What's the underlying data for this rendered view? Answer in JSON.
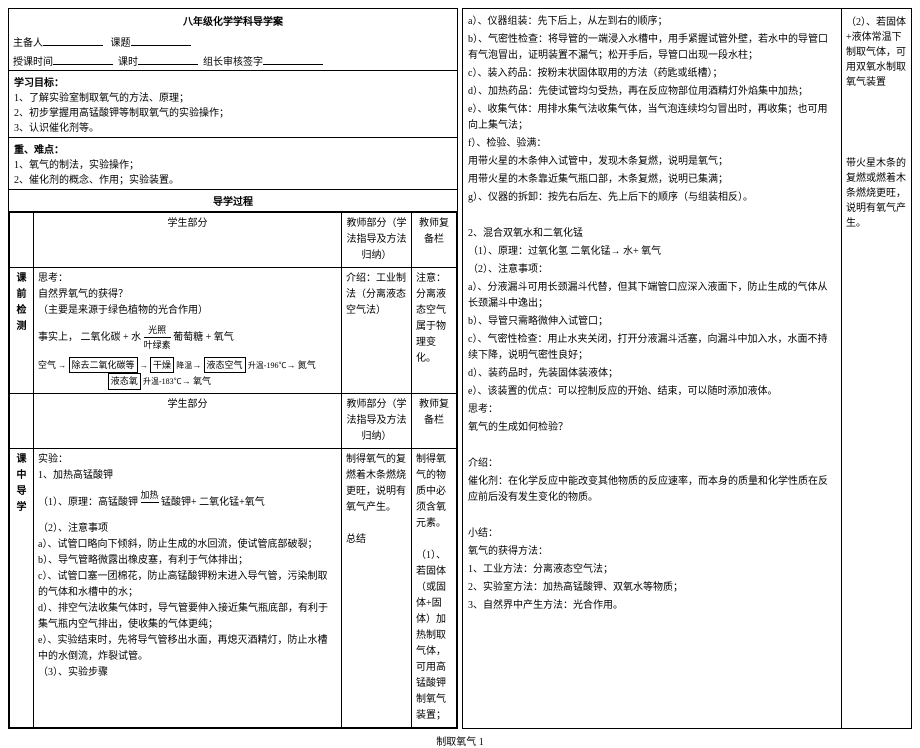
{
  "header": {
    "title": "八年级化学学科导学案",
    "host_label": "主备人",
    "topic_label": "课题",
    "time_label": "授课时间",
    "period_label": "课时",
    "leader_label": "组长审核签字"
  },
  "goals": {
    "header": "学习目标：",
    "items": [
      "1、了解实验室制取氧气的方法、原理；",
      "2、初步掌握用高锰酸钾等制取氧气的实验操作；",
      "3、认识催化剂等。"
    ]
  },
  "focus": {
    "header": "重、难点：",
    "items": [
      "1、氧气的制法，实验操作；",
      "2、催化剂的概念、作用；实验装置。"
    ]
  },
  "process_title": "导学过程",
  "columns": {
    "student": "学生部分",
    "teacher": "教师部分（学法指导及方法归纳）",
    "remark": "教师复备栏"
  },
  "pre_check": {
    "label": "课前检测",
    "think": "思考：",
    "q1": "自然界氧气的获得？",
    "q1_note": "（主要是来源于绿色植物的光合作用）",
    "eq_prefix": "事实上，",
    "eq_left": "二氧化碳 + 水",
    "eq_cond_top": "光照",
    "eq_cond_bot": "叶绿素",
    "eq_right": "葡萄糖 + 氧气",
    "flow_nodes": [
      "除去二氧化碳等",
      "干燥",
      "液态空气",
      "氮气",
      "液态氧",
      "氧气"
    ],
    "flow_labels": [
      "降温",
      "升温-196℃",
      "升温-183℃"
    ],
    "flow_start": "空气",
    "teacher": "介绍：工业制法（分离液态空气法）",
    "remark": "注意：分离液态空气属于物理变化。"
  },
  "mid": {
    "label": "课中导学",
    "exp_header": "实验：",
    "step1": "1、加热高锰酸钾",
    "principle_label": "（1）、原理：高锰酸钾",
    "principle_cond": "加热",
    "principle_right": "锰酸钾+ 二氧化锰+氧气",
    "notes_header": "（2）、注意事项",
    "notes": [
      "a）、试管口略向下倾斜，防止生成的水回流，使试管底部破裂；",
      "b）、导气管略微露出橡皮塞，有利于气体排出；",
      "c）、试管口塞一团棉花，防止高锰酸钾粉末进入导气管，污染制取的气体和水槽中的水；",
      "d）、排空气法收集气体时，导气管要伸入接近集气瓶底部，有利于集气瓶内空气排出，使收集的气体更纯；",
      "e）、实验结束时，先将导气管移出水面，再熄灭酒精灯，防止水槽中的水倒流，炸裂试管。"
    ],
    "step3": "（3）、实验步骤",
    "teacher": "制得氧气的复燃着木条燃烧更旺，说明有氧气产生。\n\n总结",
    "remark": "制得氧气的物质中必须含氧元素。\n\n（1）、若固体（或固体+固体）加热制取气体，可用高锰酸钾制氧气装置；"
  },
  "right": {
    "items_a": [
      "a）、仪器组装：先下后上，从左到右的顺序；",
      "b）、气密性检查：将导管的一端浸入水槽中，用手紧握试管外壁，若水中的导管口有气泡冒出，证明装置不漏气；松开手后，导管口出现一段水柱；",
      "c）、装入药品：按粉末状固体取用的方法（药匙或纸槽）；",
      "d）、加热药品：先使试管均匀受热，再在反应物部位用酒精灯外焰集中加热；",
      "e）、收集气体：用排水集气法收集气体，当气泡连续均匀冒出时，再收集；也可用向上集气法；",
      "f）、检验、验满：",
      "用带火星的木条伸入试管中，发现木条复燃，说明是氧气；",
      "用带火星的木条靠近集气瓶口部，木条复燃，说明已集满；",
      "g）、仪器的拆卸：按先右后左、先上后下的顺序（与组装相反）。"
    ],
    "sec2_header": "2、混合双氧水和二氧化锰",
    "sec2_principle": "（1）、原理：过氧化氢 二氧化锰→ 水+ 氧气",
    "sec2_notes_header": "（2）、注意事项：",
    "sec2_notes": [
      "a）、分液漏斗可用长颈漏斗代替，但其下端管口应深入液面下，防止生成的气体从长颈漏斗中逸出；",
      "b）、导管只需略微伸入试管口；",
      "c）、气密性检查：用止水夹关闭，打开分液漏斗活塞，向漏斗中加入水，水面不持续下降，说明气密性良好；",
      "d）、装药品时，先装固体装液体；",
      "e）、该装置的优点：可以控制反应的开始、结束，可以随时添加液体。"
    ],
    "think": "思考：",
    "think_q": "氧气的生成如何检验？",
    "intro": "介绍：",
    "catalyst": "催化剂：在化学反应中能改变其他物质的反应速率，而本身的质量和化学性质在反应前后没有发生变化的物质。",
    "summary_header": "小结：",
    "summary_title": "氧气的获得方法：",
    "summary_items": [
      "1、工业方法：分离液态空气法；",
      "2、实验室方法：加热高锰酸钾、双氧水等物质；",
      "3、自然界中产生方法：光合作用。"
    ]
  },
  "right_side": {
    "note1": "（2）、若固体+液体常温下制取气体，可用双氧水制取氧气装置",
    "note2": "带火星木条的复燃或燃着木条燃烧更旺，说明有氧气产生。"
  },
  "footer": "制取氧气  1"
}
